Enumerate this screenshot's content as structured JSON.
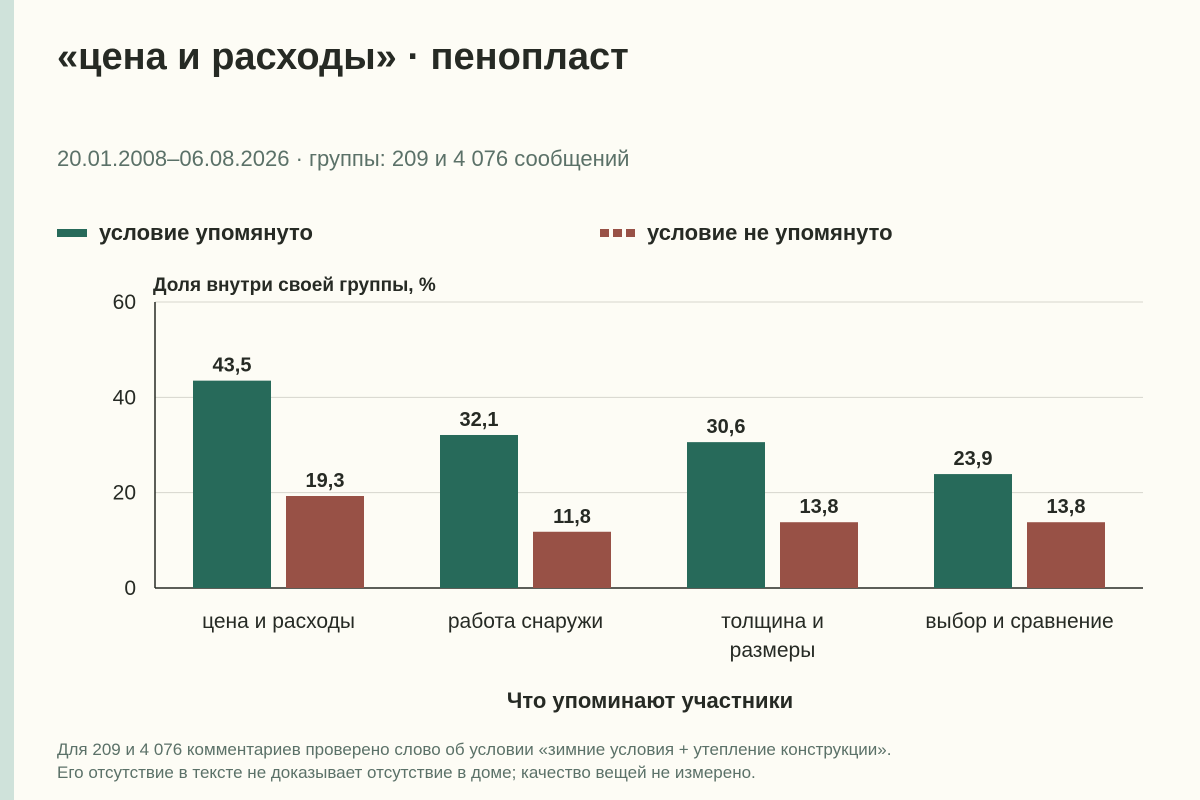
{
  "title": "«цена и расходы» · пенопласт",
  "subtitle": "20.01.2008–06.08.2026 · группы: 209 и 4 076 сообщений",
  "legend": [
    {
      "label": "условие упомянуто",
      "color": "#276a5a",
      "style": "solid"
    },
    {
      "label": "условие не упомянуто",
      "color": "#985146",
      "style": "dashed"
    }
  ],
  "chart_data": {
    "type": "bar",
    "ylabel": "Доля внутри своей группы, %",
    "xlabel": "Что упоминают участники",
    "ylim": [
      0,
      60
    ],
    "yticks": [
      0,
      20,
      40,
      60
    ],
    "grid": true,
    "legend_position": "top",
    "categories": [
      [
        "цена и расходы"
      ],
      [
        "работа снаружи"
      ],
      [
        "толщина и",
        "размеры"
      ],
      [
        "выбор и сравнение"
      ]
    ],
    "series": [
      {
        "name": "условие упомянуто",
        "color": "#276a5a",
        "values": [
          43.5,
          32.1,
          30.6,
          23.9
        ],
        "labels": [
          "43,5",
          "32,1",
          "30,6",
          "23,9"
        ]
      },
      {
        "name": "условие не упомянуто",
        "color": "#985146",
        "values": [
          19.3,
          11.8,
          13.8,
          13.8
        ],
        "labels": [
          "19,3",
          "11,8",
          "13,8",
          "13,8"
        ]
      }
    ]
  },
  "footnote": [
    "Для 209 и 4 076 комментариев проверено слово об условии «зимние условия + утепление конструкции».",
    "Его отсутствие в тексте не доказывает отсутствие в доме; качество вещей не измерено."
  ]
}
